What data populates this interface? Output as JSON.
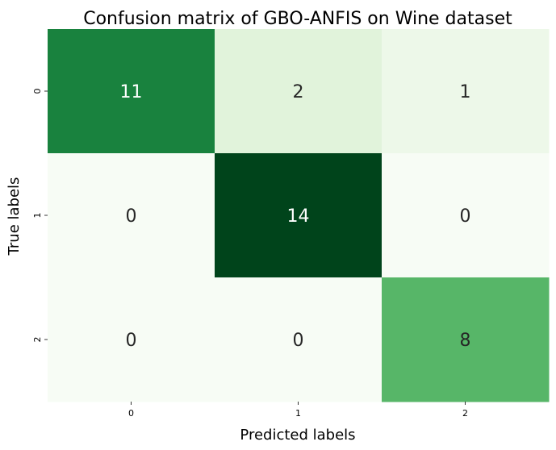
{
  "chart_data": {
    "type": "heatmap",
    "title": "Confusion matrix of GBO-ANFIS on Wine dataset",
    "xlabel": "Predicted labels",
    "ylabel": "True labels",
    "x_categories": [
      "0",
      "1",
      "2"
    ],
    "y_categories": [
      "0",
      "1",
      "2"
    ],
    "matrix": [
      [
        11,
        2,
        1
      ],
      [
        0,
        14,
        0
      ],
      [
        0,
        0,
        8
      ]
    ],
    "colormap": "Greens",
    "vmin": 0,
    "vmax": 14,
    "colorbar": false
  }
}
